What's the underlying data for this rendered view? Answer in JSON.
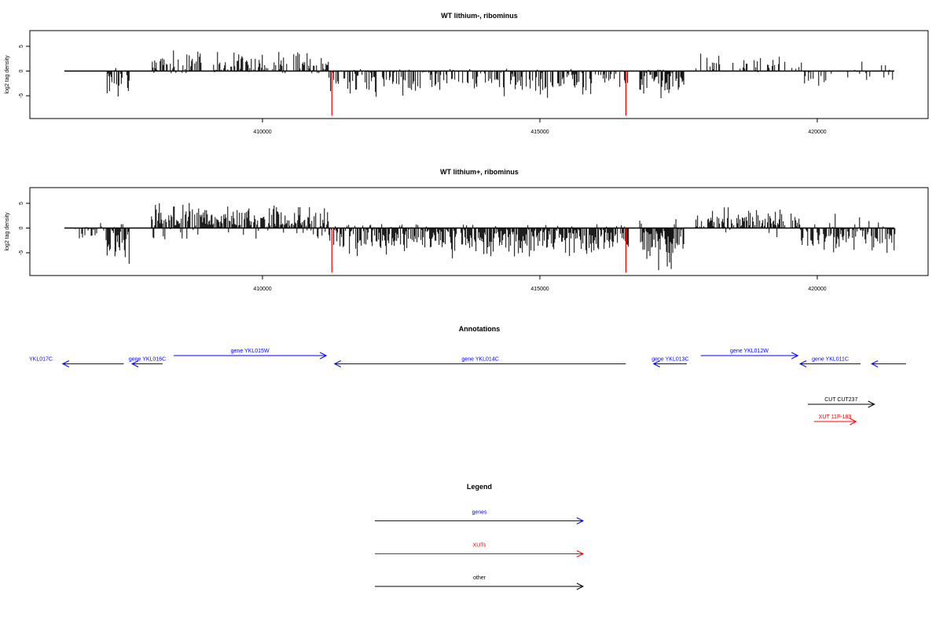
{
  "colors": {
    "gene": "#0000ff",
    "xut": "#ff0000",
    "other": "#000000",
    "marker": "#ff0000",
    "bar": "#000000"
  },
  "chart_data": [
    {
      "type": "bar",
      "title": "WT lithium-, ribominus",
      "ylabel": "log2 tag density",
      "xlim": [
        406400,
        421600
      ],
      "ylim": [
        -9.5,
        7.5
      ],
      "x_ticks": [
        410000,
        415000,
        420000
      ],
      "y_ticks": [
        5,
        0,
        -5
      ],
      "markers": [
        411250,
        416550
      ],
      "marker_depth": -9,
      "regions": [
        {
          "start": 406600,
          "end": 407200,
          "pos_max": 0,
          "neg_max": 1.5,
          "density": 0.03
        },
        {
          "start": 407200,
          "end": 407600,
          "pos_max": 1,
          "neg_max": 6.5,
          "density": 0.7
        },
        {
          "start": 408000,
          "end": 411200,
          "pos_max": 4.5,
          "neg_max": 0.5,
          "density": 0.55
        },
        {
          "start": 411200,
          "end": 416600,
          "pos_max": 0.5,
          "neg_max": 6,
          "density": 0.55
        },
        {
          "start": 416800,
          "end": 417600,
          "pos_max": 0.3,
          "neg_max": 6.5,
          "density": 0.8
        },
        {
          "start": 417800,
          "end": 419700,
          "pos_max": 3.8,
          "neg_max": 0.3,
          "density": 0.2
        },
        {
          "start": 419700,
          "end": 421400,
          "pos_max": 2,
          "neg_max": 3.5,
          "density": 0.18
        }
      ]
    },
    {
      "type": "bar",
      "title": "WT lithium+, ribominus",
      "ylabel": "log2 tag density",
      "xlim": [
        406400,
        421600
      ],
      "ylim": [
        -9.5,
        7.5
      ],
      "x_ticks": [
        410000,
        415000,
        420000
      ],
      "y_ticks": [
        5,
        0,
        -5
      ],
      "markers": [
        411250,
        416550
      ],
      "marker_depth": -9,
      "regions": [
        {
          "start": 406600,
          "end": 407200,
          "pos_max": 1,
          "neg_max": 3,
          "density": 0.5
        },
        {
          "start": 407200,
          "end": 407600,
          "pos_max": 1.2,
          "neg_max": 8,
          "density": 0.9
        },
        {
          "start": 408000,
          "end": 411200,
          "pos_max": 5.5,
          "neg_max": 2.5,
          "density": 0.9
        },
        {
          "start": 411200,
          "end": 416600,
          "pos_max": 0.8,
          "neg_max": 6.5,
          "density": 0.9
        },
        {
          "start": 416800,
          "end": 417600,
          "pos_max": 2,
          "neg_max": 9,
          "density": 0.95
        },
        {
          "start": 417800,
          "end": 419700,
          "pos_max": 4.5,
          "neg_max": 3,
          "density": 0.7
        },
        {
          "start": 419700,
          "end": 421400,
          "pos_max": 3,
          "neg_max": 6,
          "density": 0.7
        }
      ]
    }
  ],
  "axis_labels": {
    "ylabel": "log2 tag density",
    "y_tick_labels": [
      "5",
      "0",
      "-5"
    ],
    "x_tick_labels": [
      "410000",
      "415000",
      "420000"
    ]
  },
  "titles": {
    "panel1": "WT lithium-, ribominus",
    "panel2": "WT lithium+, ribominus",
    "annotations": "Annotations",
    "legend": "Legend"
  },
  "annotations": [
    {
      "label": "YKL017C",
      "type": "gene",
      "strand": "-",
      "start": 406400,
      "end": 407500,
      "row": 1
    },
    {
      "label": "gene YKL016C",
      "type": "gene",
      "strand": "-",
      "start": 407650,
      "end": 408200,
      "row": 1
    },
    {
      "label": "gene YKL015W",
      "type": "gene",
      "strand": "+",
      "start": 408400,
      "end": 411150,
      "row": 0
    },
    {
      "label": "gene YKL014C",
      "type": "gene",
      "strand": "-",
      "start": 411300,
      "end": 416550,
      "row": 1
    },
    {
      "label": "gene YKL013C",
      "type": "gene",
      "strand": "-",
      "start": 417050,
      "end": 417650,
      "row": 1
    },
    {
      "label": "gene YKL012W",
      "type": "gene",
      "strand": "+",
      "start": 417900,
      "end": 419650,
      "row": 0
    },
    {
      "label": "gene YKL011C",
      "type": "gene",
      "strand": "-",
      "start": 419690,
      "end": 420780,
      "row": 1
    },
    {
      "label": "",
      "type": "gene",
      "strand": "-",
      "start": 420980,
      "end": 421600,
      "row": 1
    },
    {
      "label": "CUT CUT237",
      "type": "other",
      "strand": "+",
      "start": 419830,
      "end": 421030,
      "row": 2
    },
    {
      "label": "XUT 11F-183",
      "type": "xut",
      "strand": "+",
      "start": 419940,
      "end": 420700,
      "row": 3
    }
  ],
  "legend": [
    {
      "label": "genes",
      "type": "gene"
    },
    {
      "label": "XUTs",
      "type": "xut"
    },
    {
      "label": "other",
      "type": "other"
    }
  ]
}
